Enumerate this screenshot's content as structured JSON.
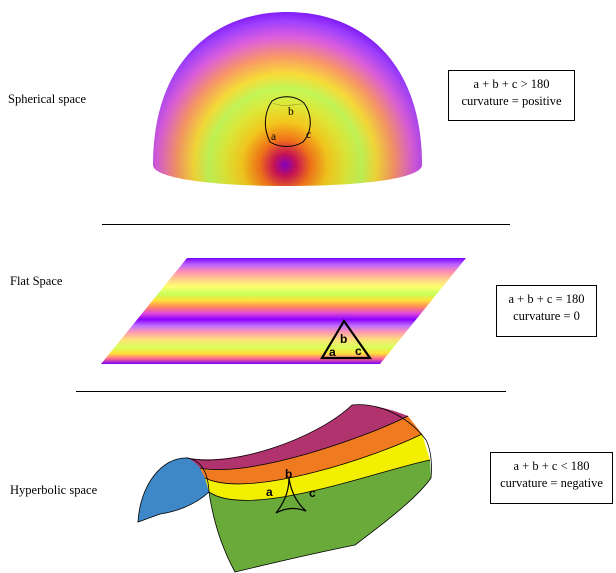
{
  "spherical": {
    "title": "Spherical space",
    "equation": "a + b + c > 180",
    "curvature": "curvature = positive",
    "vertices": {
      "a": "a",
      "b": "b",
      "c": "c"
    }
  },
  "flat": {
    "title": "Flat Space",
    "equation": "a + b + c = 180",
    "curvature": "curvature = 0",
    "vertices": {
      "a": "a",
      "b": "b",
      "c": "c"
    }
  },
  "hyperbolic": {
    "title": "Hyperbolic space",
    "equation": "a + b + c < 180",
    "curvature": "curvature = negative",
    "vertices": {
      "a": "a",
      "b": "b",
      "c": "c"
    }
  },
  "colors": {
    "spectrum": [
      "#7a00ff",
      "#b84cff",
      "#ff7fb0",
      "#ffd07a",
      "#ffff66",
      "#b8ff4c",
      "#00d27a",
      "#7a00ff"
    ],
    "hyperbolic_bands": [
      "#b0336e",
      "#ef7a1f",
      "#f2ef00",
      "#6aaa3a"
    ],
    "hyperbolic_side": "#3f88c8"
  }
}
